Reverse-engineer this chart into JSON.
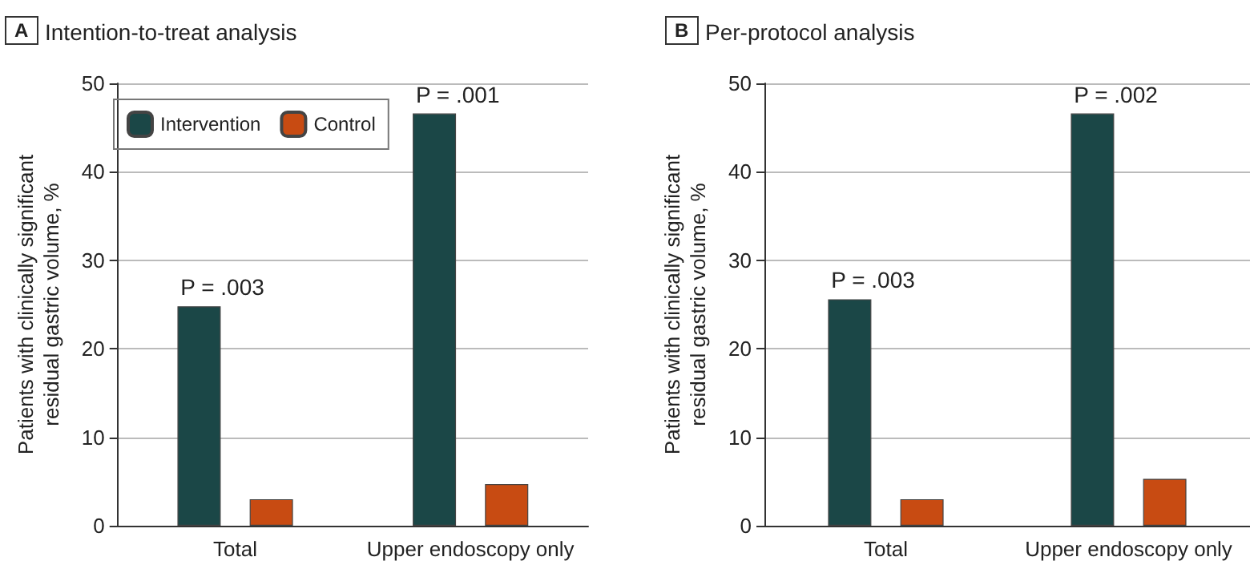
{
  "chart_data": [
    {
      "type": "bar",
      "title": "A",
      "subtitle": "Intention-to-treat analysis",
      "ylabel": "Patients with clinically significant\nresidual gastric volume, %",
      "categories": [
        "Total",
        "Upper endoscopy only"
      ],
      "series": [
        {
          "name": "Intervention",
          "color": "#1b4747",
          "values": [
            24.8,
            46.6
          ]
        },
        {
          "name": "Control",
          "color": "#c84b12",
          "values": [
            3.0,
            4.7
          ]
        }
      ],
      "ylim": [
        0,
        50
      ],
      "yticks": [
        0,
        10,
        20,
        30,
        40,
        50
      ],
      "grid": "y",
      "legend": "top left",
      "annotations": [
        "P = .003",
        "P = .001"
      ]
    },
    {
      "type": "bar",
      "title": "B",
      "subtitle": "Per-protocol analysis",
      "ylabel": "Patients with clinically significant\nresidual gastric volume, %",
      "categories": [
        "Total",
        "Upper endoscopy only"
      ],
      "series": [
        {
          "color": "#1b4747",
          "values": [
            25.6,
            46.6
          ]
        },
        {
          "color": "#c84b12",
          "values": [
            3.0,
            5.3
          ]
        }
      ],
      "ylim": [
        0,
        50
      ],
      "yticks": [
        0,
        10,
        20,
        30,
        40,
        50
      ],
      "grid": "y",
      "annotations": [
        "P = .003",
        "P = .002"
      ]
    }
  ]
}
